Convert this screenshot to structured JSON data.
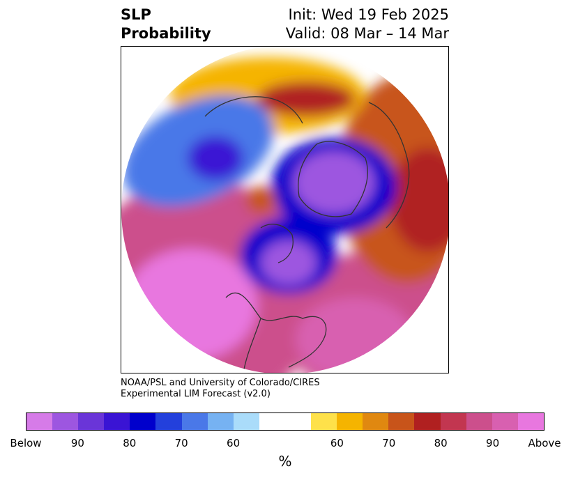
{
  "header": {
    "title_line1": "SLP",
    "title_line2": "Probability",
    "init": "Init: Wed 19 Feb 2025",
    "valid": "Valid: 08 Mar – 14 Mar"
  },
  "credit": {
    "line1": "NOAA/PSL and University of Colorado/CIRES",
    "line2": "Experimental LIM Forecast (v2.0)"
  },
  "colorbar": {
    "unit": "%",
    "below_colors": [
      "#d67be8",
      "#9d56e0",
      "#6a35d8",
      "#3a14d4",
      "#0000cc",
      "#2340dc",
      "#4a78e8",
      "#76b2f2",
      "#aadcfa"
    ],
    "neutral_color": "#ffffff",
    "above_colors": [
      "#fee14a",
      "#f5b400",
      "#e08810",
      "#c8541a",
      "#b02020",
      "#c23650",
      "#cc4f8c",
      "#d860b0",
      "#e877df"
    ],
    "tick_labels": [
      "Below",
      "90",
      "80",
      "70",
      "60",
      "60",
      "70",
      "80",
      "90",
      "Above"
    ]
  },
  "map": {
    "projection": "north-polar-stereographic",
    "features": [
      {
        "name": "north-atlantic-low",
        "category": "below"
      },
      {
        "name": "north-pacific-high",
        "category": "above"
      },
      {
        "name": "eurasia-high",
        "category": "above"
      },
      {
        "name": "arctic-low",
        "category": "below"
      }
    ]
  }
}
